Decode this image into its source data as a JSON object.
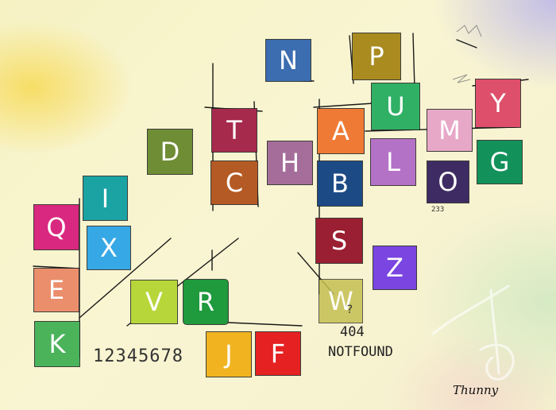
{
  "tiles": [
    {
      "letter": "N",
      "color": "#3b6db0"
    },
    {
      "letter": "P",
      "color": "#a98b20"
    },
    {
      "letter": "Y",
      "color": "#dd4f6a"
    },
    {
      "letter": "U",
      "color": "#2fb064"
    },
    {
      "letter": "M",
      "color": "#e7a8c8"
    },
    {
      "letter": "T",
      "color": "#a62a4c"
    },
    {
      "letter": "A",
      "color": "#ef7a35"
    },
    {
      "letter": "D",
      "color": "#6f8d34"
    },
    {
      "letter": "H",
      "color": "#a56e9a"
    },
    {
      "letter": "L",
      "color": "#b472c6"
    },
    {
      "letter": "G",
      "color": "#13915a"
    },
    {
      "letter": "C",
      "color": "#b45a25"
    },
    {
      "letter": "B",
      "color": "#1c4a85"
    },
    {
      "letter": "O",
      "color": "#3e2b63"
    },
    {
      "letter": "I",
      "color": "#1ba3a3"
    },
    {
      "letter": "Q",
      "color": "#d9287f"
    },
    {
      "letter": "X",
      "color": "#36a8e5"
    },
    {
      "letter": "S",
      "color": "#9b1f32"
    },
    {
      "letter": "Z",
      "color": "#7a45e0"
    },
    {
      "letter": "E",
      "color": "#eb8e6c"
    },
    {
      "letter": "V",
      "color": "#b7d63a"
    },
    {
      "letter": "R",
      "color": "#1f9a3d"
    },
    {
      "letter": "W",
      "color": "#c5c053"
    },
    {
      "letter": "K",
      "color": "#4bb35a"
    },
    {
      "letter": "J",
      "color": "#f1b420"
    },
    {
      "letter": "F",
      "color": "#e52121"
    }
  ],
  "annotations": {
    "digits": "12345678",
    "small_number": "233",
    "code": "404",
    "message": "NOTFOUND",
    "question_mark": "?",
    "signature": "Thunny"
  }
}
